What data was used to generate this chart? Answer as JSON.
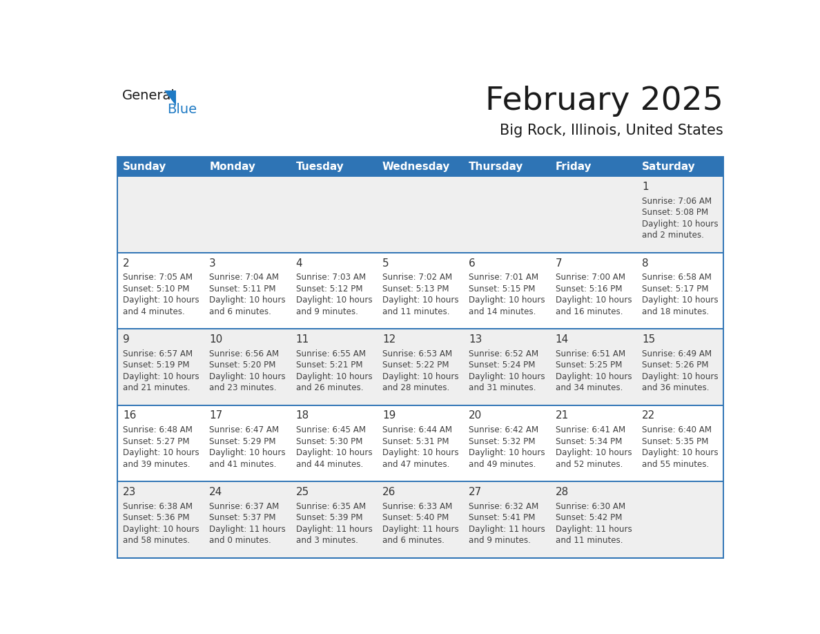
{
  "title": "February 2025",
  "subtitle": "Big Rock, Illinois, United States",
  "header_bg": "#2E74B5",
  "header_text_color": "#FFFFFF",
  "day_names": [
    "Sunday",
    "Monday",
    "Tuesday",
    "Wednesday",
    "Thursday",
    "Friday",
    "Saturday"
  ],
  "alt_row_bg": "#EFEFEF",
  "white_bg": "#FFFFFF",
  "border_color": "#2E74B5",
  "text_color": "#404040",
  "day_num_color": "#333333",
  "logo_text_color": "#1A1A1A",
  "logo_blue": "#1E7AC4",
  "calendar_data": [
    [
      null,
      null,
      null,
      null,
      null,
      null,
      {
        "day": 1,
        "sunrise": "7:06 AM",
        "sunset": "5:08 PM",
        "daylight": "10 hours and 2 minutes."
      }
    ],
    [
      {
        "day": 2,
        "sunrise": "7:05 AM",
        "sunset": "5:10 PM",
        "daylight": "10 hours and 4 minutes."
      },
      {
        "day": 3,
        "sunrise": "7:04 AM",
        "sunset": "5:11 PM",
        "daylight": "10 hours and 6 minutes."
      },
      {
        "day": 4,
        "sunrise": "7:03 AM",
        "sunset": "5:12 PM",
        "daylight": "10 hours and 9 minutes."
      },
      {
        "day": 5,
        "sunrise": "7:02 AM",
        "sunset": "5:13 PM",
        "daylight": "10 hours and 11 minutes."
      },
      {
        "day": 6,
        "sunrise": "7:01 AM",
        "sunset": "5:15 PM",
        "daylight": "10 hours and 14 minutes."
      },
      {
        "day": 7,
        "sunrise": "7:00 AM",
        "sunset": "5:16 PM",
        "daylight": "10 hours and 16 minutes."
      },
      {
        "day": 8,
        "sunrise": "6:58 AM",
        "sunset": "5:17 PM",
        "daylight": "10 hours and 18 minutes."
      }
    ],
    [
      {
        "day": 9,
        "sunrise": "6:57 AM",
        "sunset": "5:19 PM",
        "daylight": "10 hours and 21 minutes."
      },
      {
        "day": 10,
        "sunrise": "6:56 AM",
        "sunset": "5:20 PM",
        "daylight": "10 hours and 23 minutes."
      },
      {
        "day": 11,
        "sunrise": "6:55 AM",
        "sunset": "5:21 PM",
        "daylight": "10 hours and 26 minutes."
      },
      {
        "day": 12,
        "sunrise": "6:53 AM",
        "sunset": "5:22 PM",
        "daylight": "10 hours and 28 minutes."
      },
      {
        "day": 13,
        "sunrise": "6:52 AM",
        "sunset": "5:24 PM",
        "daylight": "10 hours and 31 minutes."
      },
      {
        "day": 14,
        "sunrise": "6:51 AM",
        "sunset": "5:25 PM",
        "daylight": "10 hours and 34 minutes."
      },
      {
        "day": 15,
        "sunrise": "6:49 AM",
        "sunset": "5:26 PM",
        "daylight": "10 hours and 36 minutes."
      }
    ],
    [
      {
        "day": 16,
        "sunrise": "6:48 AM",
        "sunset": "5:27 PM",
        "daylight": "10 hours and 39 minutes."
      },
      {
        "day": 17,
        "sunrise": "6:47 AM",
        "sunset": "5:29 PM",
        "daylight": "10 hours and 41 minutes."
      },
      {
        "day": 18,
        "sunrise": "6:45 AM",
        "sunset": "5:30 PM",
        "daylight": "10 hours and 44 minutes."
      },
      {
        "day": 19,
        "sunrise": "6:44 AM",
        "sunset": "5:31 PM",
        "daylight": "10 hours and 47 minutes."
      },
      {
        "day": 20,
        "sunrise": "6:42 AM",
        "sunset": "5:32 PM",
        "daylight": "10 hours and 49 minutes."
      },
      {
        "day": 21,
        "sunrise": "6:41 AM",
        "sunset": "5:34 PM",
        "daylight": "10 hours and 52 minutes."
      },
      {
        "day": 22,
        "sunrise": "6:40 AM",
        "sunset": "5:35 PM",
        "daylight": "10 hours and 55 minutes."
      }
    ],
    [
      {
        "day": 23,
        "sunrise": "6:38 AM",
        "sunset": "5:36 PM",
        "daylight": "10 hours and 58 minutes."
      },
      {
        "day": 24,
        "sunrise": "6:37 AM",
        "sunset": "5:37 PM",
        "daylight": "11 hours and 0 minutes."
      },
      {
        "day": 25,
        "sunrise": "6:35 AM",
        "sunset": "5:39 PM",
        "daylight": "11 hours and 3 minutes."
      },
      {
        "day": 26,
        "sunrise": "6:33 AM",
        "sunset": "5:40 PM",
        "daylight": "11 hours and 6 minutes."
      },
      {
        "day": 27,
        "sunrise": "6:32 AM",
        "sunset": "5:41 PM",
        "daylight": "11 hours and 9 minutes."
      },
      {
        "day": 28,
        "sunrise": "6:30 AM",
        "sunset": "5:42 PM",
        "daylight": "11 hours and 11 minutes."
      },
      null
    ]
  ]
}
